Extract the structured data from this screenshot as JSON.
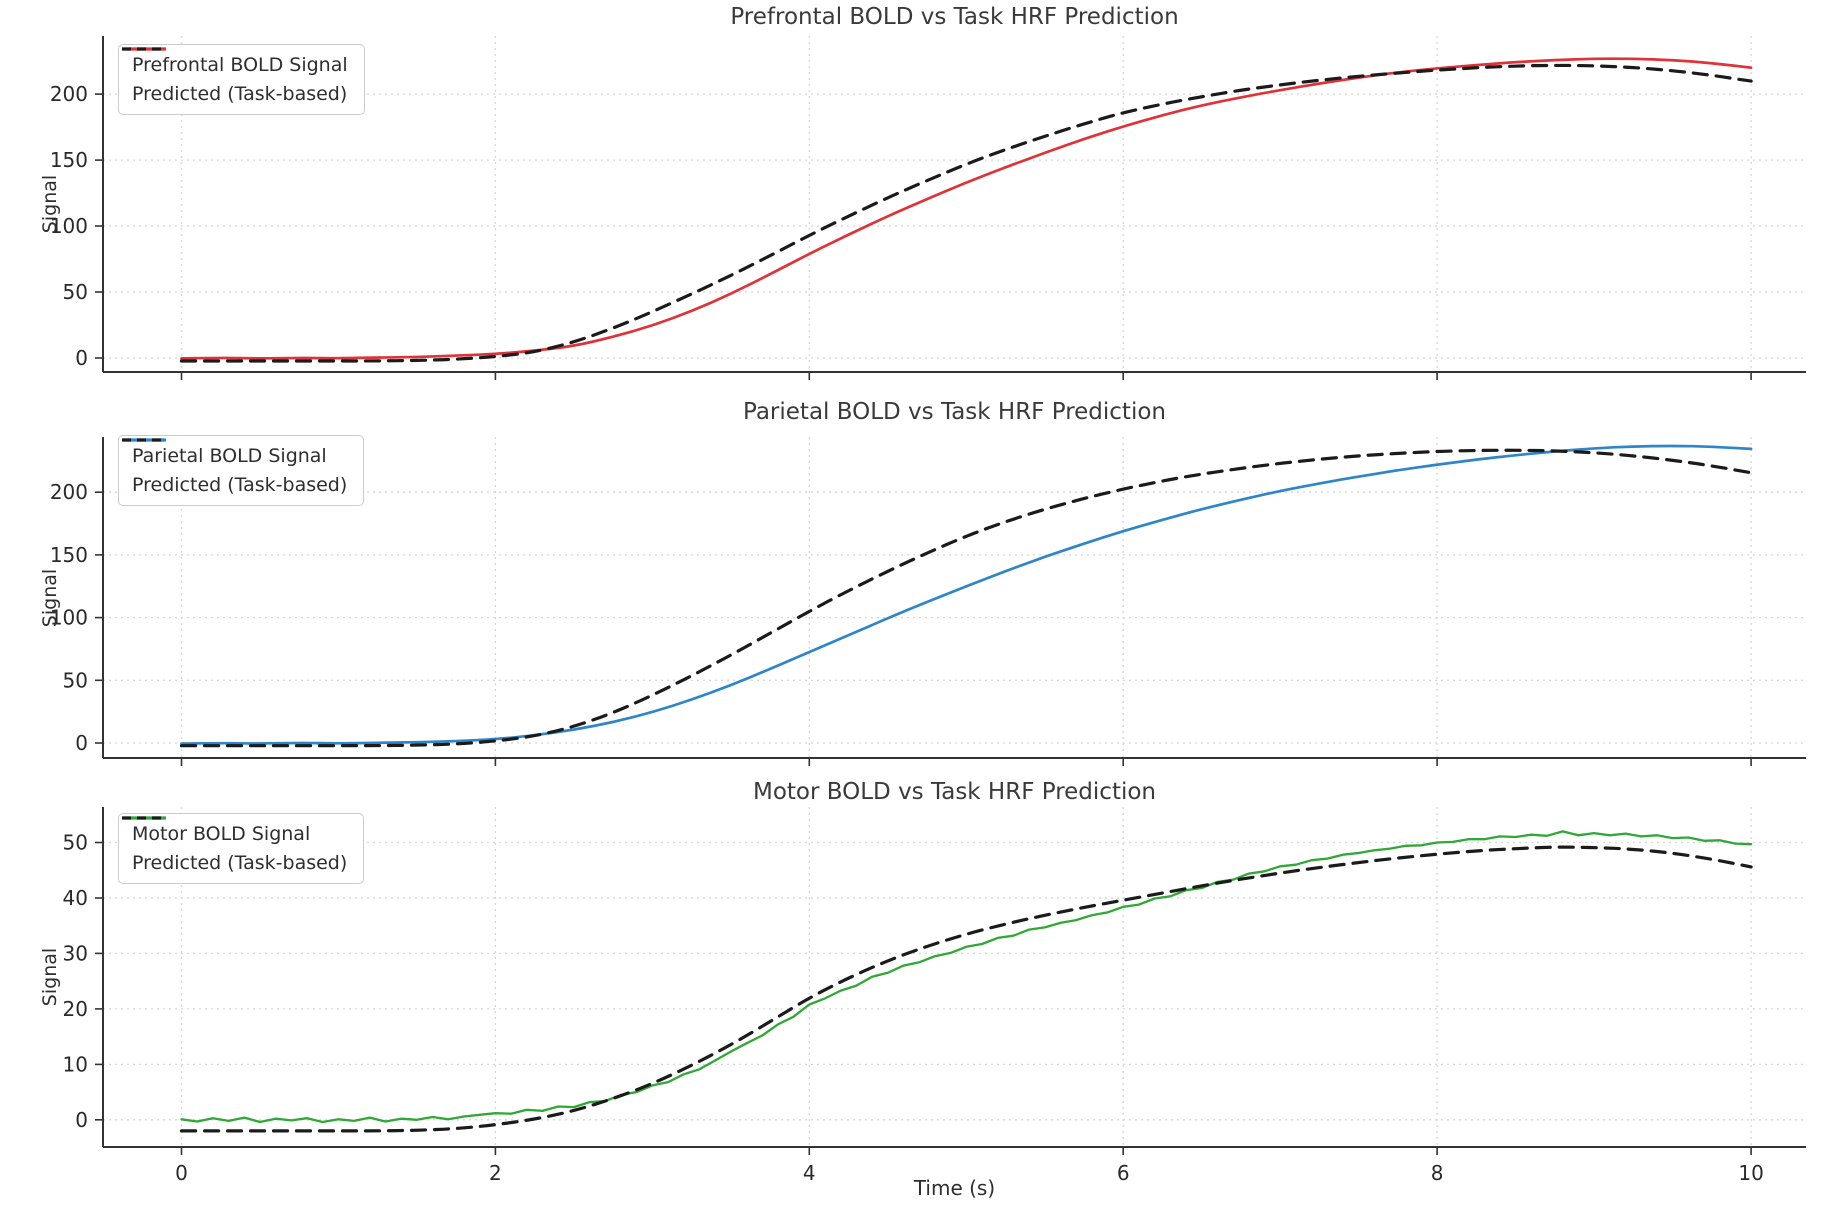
{
  "figure": {
    "xlabel": "Time (s)",
    "xlim": [
      -0.5,
      10.35
    ],
    "x_ticks": [
      0,
      2,
      4,
      6,
      8,
      10
    ],
    "colors": {
      "background": "#ffffff",
      "grid": "#d7d7d7",
      "spine": "#333333",
      "tick_text": "#2a2a2a",
      "title_text": "#3a3a3a",
      "legend_border": "#cccccc"
    }
  },
  "chart_data": [
    {
      "type": "line",
      "title": "Prefrontal BOLD vs Task HRF Prediction",
      "ylabel": "Signal",
      "y_ticks": [
        0,
        50,
        100,
        150,
        200
      ],
      "ylim": [
        -10.6,
        244
      ],
      "grid": true,
      "legend_position": "upper left",
      "series": [
        {
          "name": "Prefrontal BOLD Signal",
          "color": "#dd3439",
          "dash": false,
          "noisy": false,
          "x0": 0,
          "dx": 0.25,
          "values": [
            -0.3,
            0.2,
            -0.4,
            0.1,
            -0.2,
            0.3,
            0.8,
            1.8,
            3,
            5.5,
            9,
            16,
            24.5,
            35.5,
            48.5,
            63.5,
            79,
            93.5,
            107.5,
            120.5,
            133,
            144.5,
            155.5,
            166,
            175.5,
            184,
            191.5,
            197.5,
            203,
            208,
            212.5,
            216.5,
            219.5,
            222,
            224.2,
            225.8,
            226.8,
            226.8,
            225.8,
            223.5,
            220
          ]
        },
        {
          "name": "Predicted (Task-based)",
          "color": "#1b1b1b",
          "dash": true,
          "noisy": false,
          "x0": 0,
          "dx": 0.25,
          "values": [
            -2.3,
            -2.3,
            -2.3,
            -2.3,
            -2.3,
            -2.2,
            -1.9,
            -1,
            1,
            4.5,
            12,
            22.5,
            35,
            48.5,
            62.5,
            77.5,
            93,
            107.5,
            121.5,
            134.5,
            147,
            158,
            168,
            177.5,
            186,
            192.5,
            198,
            203,
            207,
            210.5,
            213.5,
            216,
            218.2,
            220,
            221.3,
            221.8,
            221.5,
            220.2,
            217.8,
            214.3,
            209.8
          ]
        }
      ]
    },
    {
      "type": "line",
      "title": "Parietal BOLD vs Task HRF Prediction",
      "ylabel": "Signal",
      "y_ticks": [
        0,
        50,
        100,
        150,
        200
      ],
      "ylim": [
        -12,
        244
      ],
      "grid": true,
      "legend_position": "upper left",
      "series": [
        {
          "name": "Parietal BOLD Signal",
          "color": "#2e86c8",
          "dash": false,
          "noisy": false,
          "x0": 0,
          "dx": 0.25,
          "values": [
            -0.5,
            0,
            -0.5,
            0.1,
            -0.4,
            0.2,
            0.6,
            1.4,
            3,
            6,
            10.5,
            16.5,
            24.5,
            34.5,
            46,
            59,
            72.5,
            86,
            99.5,
            112.5,
            125,
            137,
            148.5,
            159,
            169,
            178,
            186.5,
            194,
            201,
            207,
            212.5,
            217.5,
            222,
            226,
            229.5,
            232.5,
            235,
            236.5,
            237,
            236.3,
            234.5
          ]
        },
        {
          "name": "Predicted (Task-based)",
          "color": "#1b1b1b",
          "dash": true,
          "noisy": false,
          "x0": 0,
          "dx": 0.25,
          "values": [
            -2.2,
            -2.2,
            -2.2,
            -2.2,
            -2.2,
            -2.1,
            -1.8,
            -0.9,
            1.5,
            5.5,
            13,
            24,
            38,
            53.5,
            70,
            87.5,
            105,
            121.5,
            137,
            151.5,
            165,
            176.5,
            186.5,
            195,
            202.5,
            209,
            214.5,
            219,
            223,
            226.3,
            229,
            231,
            232.5,
            233.3,
            233.5,
            233,
            231.5,
            229,
            225.5,
            221,
            215.5
          ]
        }
      ]
    },
    {
      "type": "line",
      "title": "Motor BOLD vs Task HRF Prediction",
      "ylabel": "Signal",
      "y_ticks": [
        0,
        10,
        20,
        30,
        40,
        50
      ],
      "ylim": [
        -4.9,
        56.4
      ],
      "grid": true,
      "legend_position": "upper left",
      "series": [
        {
          "name": "Motor BOLD Signal",
          "color": "#2fa836",
          "dash": false,
          "noisy": true,
          "x0": 0,
          "dx": 0.1,
          "values": [
            0.1,
            -0.3,
            0.3,
            -0.2,
            0.4,
            -0.4,
            0.2,
            -0.1,
            0.3,
            -0.4,
            0.1,
            -0.2,
            0.4,
            -0.3,
            0.2,
            0,
            0.5,
            0.1,
            0.6,
            0.9,
            1.2,
            1.1,
            1.8,
            1.6,
            2.4,
            2.3,
            3.2,
            3.4,
            4.5,
            5,
            6.2,
            6.8,
            8.2,
            9.1,
            10.7,
            12.3,
            13.8,
            15.2,
            17.2,
            18.6,
            20.8,
            21.9,
            23.3,
            24.2,
            25.8,
            26.5,
            27.8,
            28.4,
            29.5,
            30.1,
            31.2,
            31.7,
            32.8,
            33.2,
            34.3,
            34.7,
            35.5,
            36,
            36.9,
            37.4,
            38.4,
            38.8,
            39.9,
            40.3,
            41.4,
            41.8,
            42.9,
            43.3,
            44.4,
            44.8,
            45.7,
            46,
            46.8,
            47.1,
            47.8,
            48.1,
            48.6,
            48.9,
            49.4,
            49.5,
            50,
            50.1,
            50.6,
            50.6,
            51.1,
            51,
            51.4,
            51.2,
            52,
            51.3,
            51.7,
            51.3,
            51.6,
            51.1,
            51.3,
            50.8,
            50.9,
            50.3,
            50.4,
            49.8,
            49.7
          ]
        },
        {
          "name": "Predicted (Task-based)",
          "color": "#1b1b1b",
          "dash": true,
          "noisy": false,
          "x0": 0,
          "dx": 0.25,
          "values": [
            -2,
            -2,
            -2,
            -2,
            -2,
            -2,
            -1.9,
            -1.6,
            -0.9,
            0.1,
            1.6,
            3.8,
            6.5,
            9.8,
            13.5,
            17.7,
            22,
            25.6,
            28.7,
            31.3,
            33.5,
            35.3,
            36.9,
            38.3,
            39.6,
            40.9,
            42.2,
            43.4,
            44.5,
            45.5,
            46.4,
            47.2,
            47.9,
            48.5,
            48.9,
            49.2,
            49.1,
            48.8,
            48.1,
            47,
            45.6
          ]
        }
      ]
    }
  ]
}
